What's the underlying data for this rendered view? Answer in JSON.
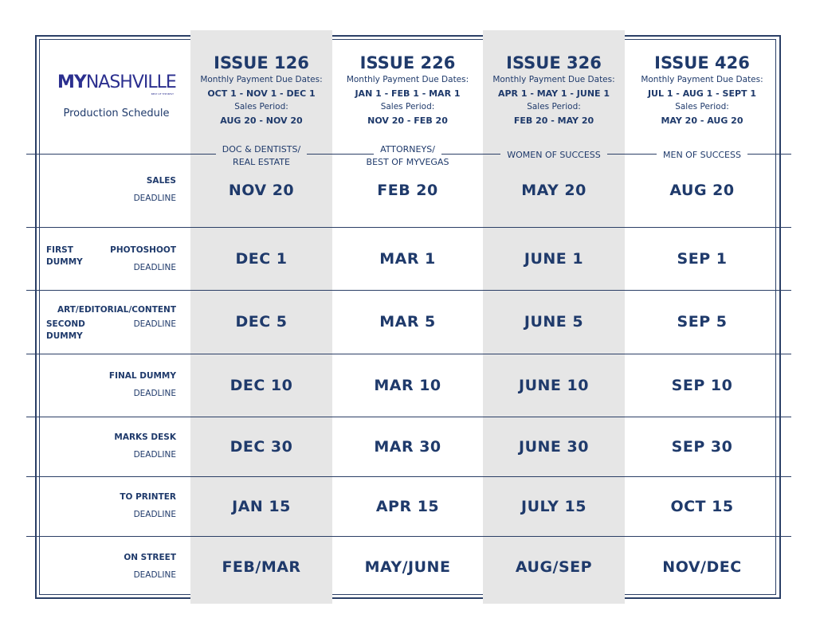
{
  "logo": {
    "my": "MY",
    "nashville": "NASHVILLE",
    "tagline": "BEST OF THE BEST"
  },
  "subtitle": "Production Schedule",
  "colors": {
    "navy": "#1f3a6b",
    "gray_column": "#e6e6e6"
  },
  "issues": [
    {
      "title": "ISSUE 126",
      "payment_label": "Monthly Payment Due Dates:",
      "payment_dates": "OCT 1 - NOV 1 - DEC 1",
      "sales_label": "Sales Period:",
      "sales_period": "AUG 20 - NOV 20",
      "category": "DOC & DENTISTS/\nREAL ESTATE",
      "cat1": "DOC & DENTISTS/",
      "cat2": "REAL ESTATE"
    },
    {
      "title": "ISSUE 226",
      "payment_label": "Monthly Payment Due Dates:",
      "payment_dates": "JAN 1 - FEB 1 - MAR 1",
      "sales_label": "Sales Period:",
      "sales_period": "NOV 20 - FEB 20",
      "cat1": "ATTORNEYS/",
      "cat2": "BEST OF MYVEGAS"
    },
    {
      "title": "ISSUE 326",
      "payment_label": "Monthly Payment Due Dates:",
      "payment_dates": "APR 1 - MAY 1 - JUNE 1",
      "sales_label": "Sales Period:",
      "sales_period": "FEB 20 - MAY 20",
      "cat1": "WOMEN OF SUCCESS",
      "cat2": ""
    },
    {
      "title": "ISSUE 426",
      "payment_label": "Monthly Payment Due Dates:",
      "payment_dates": "JUL 1 - AUG 1 - SEPT 1",
      "sales_label": "Sales Period:",
      "sales_period": "MAY 20 - AUG 20",
      "cat1": "MEN OF SUCCESS",
      "cat2": ""
    }
  ],
  "rows": [
    {
      "left": "",
      "label": "SALES",
      "sub": "DEADLINE",
      "values": [
        "NOV 20",
        "FEB 20",
        "MAY 20",
        "AUG 20"
      ]
    },
    {
      "left": "FIRST\nDUMMY",
      "label": "PHOTOSHOOT",
      "sub": "DEADLINE",
      "values": [
        "DEC 1",
        "MAR 1",
        "JUNE 1",
        "SEP 1"
      ]
    },
    {
      "left": "SECOND\nDUMMY",
      "label": "ART/EDITORIAL/CONTENT",
      "sub": "DEADLINE",
      "values": [
        "DEC 5",
        "MAR 5",
        "JUNE 5",
        "SEP 5"
      ]
    },
    {
      "left": "",
      "label": "FINAL DUMMY",
      "sub": "DEADLINE",
      "values": [
        "DEC 10",
        "MAR 10",
        "JUNE 10",
        "SEP 10"
      ]
    },
    {
      "left": "",
      "label": "MARKS DESK",
      "sub": "DEADLINE",
      "values": [
        "DEC 30",
        "MAR 30",
        "JUNE 30",
        "SEP 30"
      ]
    },
    {
      "left": "",
      "label": "TO PRINTER",
      "sub": "DEADLINE",
      "values": [
        "JAN 15",
        "APR 15",
        "JULY 15",
        "OCT 15"
      ]
    },
    {
      "left": "",
      "label": "ON STREET",
      "sub": "DEADLINE",
      "values": [
        "FEB/MAR",
        "MAY/JUNE",
        "AUG/SEP",
        "NOV/DEC"
      ]
    }
  ]
}
